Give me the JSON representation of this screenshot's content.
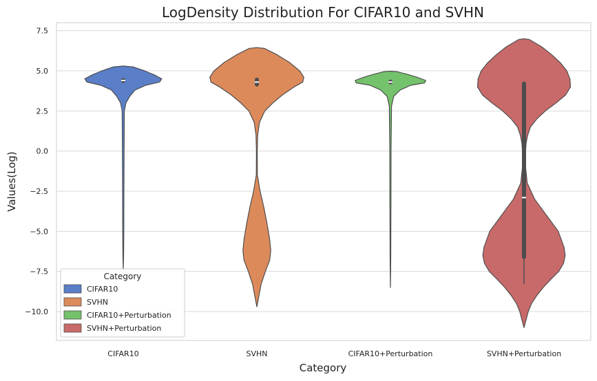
{
  "chart_data": {
    "type": "violin",
    "title": "LogDensity Distribution For CIFAR10 and SVHN",
    "xlabel": "Category",
    "ylabel": "Values(Log)",
    "ylim": [
      -11.8,
      8.0
    ],
    "yticks": [
      7.5,
      5.0,
      2.5,
      0.0,
      -2.5,
      -5.0,
      -7.5,
      -10.0
    ],
    "ytick_labels": [
      "7.5",
      "5.0",
      "2.5",
      "0.0",
      "−2.5",
      "−5.0",
      "−7.5",
      "−10.0"
    ],
    "grid": true,
    "legend": {
      "title": "Category",
      "position": "lower-left",
      "entries": [
        "CIFAR10",
        "SVHN",
        "CIFAR10+Perturbation",
        "SVHN+Perturbation"
      ]
    },
    "categories": [
      "CIFAR10",
      "SVHN",
      "CIFAR10+Perturbation",
      "SVHN+Perturbation"
    ],
    "series": [
      {
        "name": "CIFAR10",
        "color": "#5a7ec8",
        "median": 4.4,
        "q1": 4.38,
        "q3": 4.42,
        "profile": [
          [
            5.3,
            0.0
          ],
          [
            5.25,
            0.18
          ],
          [
            5.0,
            0.4
          ],
          [
            4.75,
            0.58
          ],
          [
            4.5,
            0.72
          ],
          [
            4.3,
            0.68
          ],
          [
            4.1,
            0.42
          ],
          [
            3.8,
            0.22
          ],
          [
            3.4,
            0.12
          ],
          [
            3.0,
            0.05
          ],
          [
            2.5,
            0.02
          ],
          [
            0.0,
            0.015
          ],
          [
            -3.0,
            0.012
          ],
          [
            -5.0,
            0.01
          ],
          [
            -6.5,
            0.006
          ],
          [
            -7.4,
            0.0
          ]
        ]
      },
      {
        "name": "SVHN",
        "color": "#dd8a5b",
        "median": 4.3,
        "q1": 4.15,
        "q3": 4.45,
        "profile": [
          [
            6.45,
            0.0
          ],
          [
            6.4,
            0.14
          ],
          [
            6.0,
            0.38
          ],
          [
            5.5,
            0.62
          ],
          [
            5.0,
            0.8
          ],
          [
            4.6,
            0.88
          ],
          [
            4.3,
            0.86
          ],
          [
            4.0,
            0.7
          ],
          [
            3.5,
            0.48
          ],
          [
            3.0,
            0.3
          ],
          [
            2.5,
            0.15
          ],
          [
            1.8,
            0.05
          ],
          [
            1.0,
            0.015
          ],
          [
            0.0,
            0.008
          ],
          [
            -1.5,
            0.01
          ],
          [
            -2.5,
            0.06
          ],
          [
            -3.5,
            0.13
          ],
          [
            -4.5,
            0.19
          ],
          [
            -5.5,
            0.24
          ],
          [
            -6.2,
            0.26
          ],
          [
            -6.8,
            0.24
          ],
          [
            -7.5,
            0.16
          ],
          [
            -8.3,
            0.08
          ],
          [
            -9.0,
            0.04
          ],
          [
            -9.7,
            0.0
          ]
        ]
      },
      {
        "name": "CIFAR10+Perturbation",
        "color": "#74c26c",
        "median": 4.3,
        "q1": 4.28,
        "q3": 4.33,
        "profile": [
          [
            4.98,
            0.0
          ],
          [
            4.95,
            0.12
          ],
          [
            4.8,
            0.3
          ],
          [
            4.6,
            0.5
          ],
          [
            4.4,
            0.66
          ],
          [
            4.25,
            0.64
          ],
          [
            4.1,
            0.38
          ],
          [
            3.8,
            0.18
          ],
          [
            3.4,
            0.06
          ],
          [
            2.8,
            0.02
          ],
          [
            0.0,
            0.012
          ],
          [
            -3.0,
            0.01
          ],
          [
            -5.0,
            0.008
          ],
          [
            -6.5,
            0.006
          ],
          [
            -7.5,
            0.004
          ],
          [
            -8.5,
            0.0
          ]
        ]
      },
      {
        "name": "SVHN+Perturbation",
        "color": "#c96a6a",
        "median": -2.9,
        "q1": -6.6,
        "q3": 4.2,
        "whisker_low": -8.3,
        "whisker_high": 4.3,
        "profile": [
          [
            7.0,
            0.0
          ],
          [
            6.95,
            0.1
          ],
          [
            6.5,
            0.33
          ],
          [
            6.0,
            0.52
          ],
          [
            5.5,
            0.68
          ],
          [
            5.0,
            0.8
          ],
          [
            4.5,
            0.86
          ],
          [
            4.0,
            0.87
          ],
          [
            3.5,
            0.78
          ],
          [
            3.0,
            0.6
          ],
          [
            2.5,
            0.4
          ],
          [
            2.0,
            0.24
          ],
          [
            1.5,
            0.12
          ],
          [
            1.0,
            0.07
          ],
          [
            0.5,
            0.04
          ],
          [
            0.0,
            0.03
          ],
          [
            -1.0,
            0.03
          ],
          [
            -2.0,
            0.06
          ],
          [
            -3.0,
            0.2
          ],
          [
            -4.0,
            0.42
          ],
          [
            -5.0,
            0.64
          ],
          [
            -6.0,
            0.75
          ],
          [
            -6.5,
            0.77
          ],
          [
            -7.0,
            0.74
          ],
          [
            -7.5,
            0.65
          ],
          [
            -8.0,
            0.5
          ],
          [
            -8.5,
            0.36
          ],
          [
            -9.0,
            0.24
          ],
          [
            -9.5,
            0.14
          ],
          [
            -10.0,
            0.08
          ],
          [
            -10.5,
            0.04
          ],
          [
            -11.0,
            0.0
          ]
        ]
      }
    ]
  }
}
